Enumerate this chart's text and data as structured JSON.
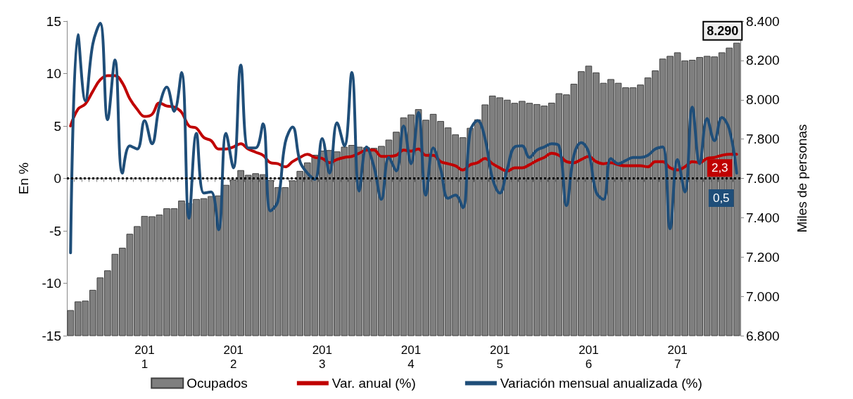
{
  "chart_data": {
    "type": "bar",
    "categories": [
      null,
      null,
      null,
      null,
      null,
      null,
      null,
      null,
      null,
      null,
      "2011",
      null,
      null,
      null,
      null,
      null,
      null,
      null,
      null,
      null,
      null,
      null,
      "2012",
      null,
      null,
      null,
      null,
      null,
      null,
      null,
      null,
      null,
      null,
      null,
      "2013",
      null,
      null,
      null,
      null,
      null,
      null,
      null,
      null,
      null,
      null,
      null,
      "2014",
      null,
      null,
      null,
      null,
      null,
      null,
      null,
      null,
      null,
      null,
      null,
      "2015",
      null,
      null,
      null,
      null,
      null,
      null,
      null,
      null,
      null,
      null,
      null,
      "2016",
      null,
      null,
      null,
      null,
      null,
      null,
      null,
      null,
      null,
      null,
      null,
      "2017",
      null,
      null,
      null,
      null,
      null,
      null,
      null,
      null
    ],
    "ylabel": "En %",
    "y2label": "Miles de personas",
    "ylim": [
      -15,
      15
    ],
    "yticks": [
      -15,
      -10,
      -5,
      0,
      5,
      10,
      15
    ],
    "y2lim": [
      6800,
      8400
    ],
    "y2ticks": [
      {
        "value": 6800,
        "label": "6.800"
      },
      {
        "value": 7000,
        "label": "7.000"
      },
      {
        "value": 7200,
        "label": "7.200"
      },
      {
        "value": 7400,
        "label": "7.400"
      },
      {
        "value": 7600,
        "label": "7.600"
      },
      {
        "value": 7800,
        "label": "7.800"
      },
      {
        "value": 8000,
        "label": "8.000"
      },
      {
        "value": 8200,
        "label": "8.200"
      },
      {
        "value": 8400,
        "label": "8.400"
      }
    ],
    "legend": "bottom",
    "grid": false,
    "marker": "none",
    "ref_lines": [
      {
        "axis": "y",
        "value": 0,
        "color": "#000000",
        "line_style": "dotted"
      }
    ],
    "series": [
      {
        "name": "Ocupados",
        "axis": "y2",
        "color": "#7f7f7f",
        "values": [
          6930,
          6974,
          6978,
          7033,
          7096,
          7132,
          7216,
          7247,
          7318,
          7357,
          7409,
          7407,
          7416,
          7448,
          7448,
          7487,
          7475,
          7495,
          7499,
          7510,
          7513,
          7567,
          7594,
          7642,
          7618,
          7626,
          7621,
          7591,
          7555,
          7555,
          7590,
          7638,
          7681,
          7720,
          7741,
          7744,
          7737,
          7761,
          7770,
          7761,
          7758,
          7755,
          7765,
          7797,
          7837,
          7910,
          7925,
          7952,
          7898,
          7928,
          7892,
          7859,
          7824,
          7809,
          7857,
          7900,
          7976,
          8021,
          8012,
          8000,
          7984,
          7994,
          7984,
          7978,
          7970,
          7985,
          8033,
          8027,
          8081,
          8145,
          8173,
          8139,
          8086,
          8105,
          8086,
          8063,
          8063,
          8077,
          8113,
          8149,
          8209,
          8223,
          8241,
          8200,
          8203,
          8217,
          8223,
          8220,
          8241,
          8265,
          8290
        ],
        "value_labels": [
          null,
          null,
          null,
          null,
          null,
          null,
          null,
          null,
          null,
          null,
          null,
          null,
          null,
          null,
          null,
          null,
          null,
          null,
          null,
          null,
          null,
          null,
          null,
          null,
          null,
          null,
          null,
          null,
          null,
          null,
          null,
          null,
          null,
          null,
          null,
          null,
          null,
          null,
          null,
          null,
          null,
          null,
          null,
          null,
          null,
          null,
          null,
          null,
          null,
          null,
          null,
          null,
          null,
          null,
          null,
          null,
          null,
          null,
          null,
          null,
          null,
          null,
          null,
          null,
          null,
          null,
          null,
          null,
          null,
          null,
          null,
          null,
          null,
          null,
          null,
          null,
          null,
          null,
          null,
          null,
          null,
          null,
          null,
          null,
          null,
          null,
          null,
          null,
          null,
          null,
          "8.290"
        ]
      },
      {
        "name": "Var. anual (%)",
        "type": "line",
        "color": "#c00000",
        "values": [
          5.0,
          6.6,
          7.1,
          8.3,
          9.4,
          9.8,
          9.8,
          9.1,
          7.6,
          6.6,
          5.9,
          6.1,
          7.2,
          6.9,
          6.8,
          6.3,
          5.0,
          4.8,
          3.9,
          3.6,
          2.8,
          2.8,
          3.0,
          3.3,
          2.8,
          2.5,
          2.2,
          1.5,
          1.4,
          1.1,
          1.6,
          2.0,
          2.3,
          2.0,
          1.9,
          1.5,
          1.8,
          2.0,
          2.1,
          2.4,
          2.7,
          2.7,
          2.1,
          2.1,
          2.2,
          2.7,
          2.6,
          2.8,
          2.2,
          2.2,
          1.6,
          1.4,
          1.2,
          0.8,
          1.3,
          1.5,
          1.9,
          1.4,
          1.0,
          0.7,
          1.0,
          1.0,
          1.3,
          1.7,
          2.0,
          2.4,
          2.2,
          1.6,
          1.5,
          1.8,
          2.1,
          1.6,
          1.4,
          1.5,
          1.3,
          1.2,
          1.2,
          1.2,
          1.1,
          1.6,
          1.6,
          1.0,
          0.8,
          1.1,
          1.6,
          1.5,
          1.9,
          2.0,
          2.2,
          2.3,
          2.3
        ],
        "value_labels": [
          null,
          null,
          null,
          null,
          null,
          null,
          null,
          null,
          null,
          null,
          null,
          null,
          null,
          null,
          null,
          null,
          null,
          null,
          null,
          null,
          null,
          null,
          null,
          null,
          null,
          null,
          null,
          null,
          null,
          null,
          null,
          null,
          null,
          null,
          null,
          null,
          null,
          null,
          null,
          null,
          null,
          null,
          null,
          null,
          null,
          null,
          null,
          null,
          null,
          null,
          null,
          null,
          null,
          null,
          null,
          null,
          null,
          null,
          null,
          null,
          null,
          null,
          null,
          null,
          null,
          null,
          null,
          null,
          null,
          null,
          null,
          null,
          null,
          null,
          null,
          null,
          null,
          null,
          null,
          null,
          null,
          null,
          null,
          null,
          null,
          null,
          null,
          null,
          null,
          null,
          "2,3"
        ]
      },
      {
        "name": "Variación mensual anualizada (%)",
        "type": "line",
        "color": "#1f4e79",
        "values": [
          -7.1,
          13.7,
          7.4,
          12.8,
          14.8,
          5.6,
          11.3,
          0.5,
          3.1,
          2.8,
          5.5,
          3.3,
          6.9,
          8.7,
          6.4,
          10.1,
          -3.8,
          4.3,
          -1.4,
          -1.3,
          -4.9,
          4.3,
          1.0,
          10.8,
          2.9,
          2.9,
          5.2,
          -3.1,
          -2.2,
          3.4,
          4.9,
          1.6,
          0.5,
          -0.1,
          3.8,
          0.5,
          5.3,
          3.1,
          10.1,
          -1.2,
          3.0,
          1.1,
          -2.0,
          2.0,
          0.7,
          5.0,
          1.4,
          6.3,
          -1.6,
          2.9,
          0.9,
          -1.9,
          -1.6,
          -2.8,
          4.5,
          5.5,
          3.8,
          0.0,
          -1.4,
          0.9,
          3.0,
          3.1,
          2.0,
          2.7,
          3.0,
          3.3,
          3.1,
          -2.6,
          2.2,
          3.4,
          2.5,
          -1.3,
          -2.0,
          1.9,
          1.4,
          1.7,
          2.0,
          2.0,
          2.2,
          2.8,
          3.0,
          -4.8,
          1.8,
          -1.3,
          6.8,
          1.4,
          5.7,
          3.6,
          5.8,
          4.7,
          0.5
        ],
        "value_labels": [
          null,
          null,
          null,
          null,
          null,
          null,
          null,
          null,
          null,
          null,
          null,
          null,
          null,
          null,
          null,
          null,
          null,
          null,
          null,
          null,
          null,
          null,
          null,
          null,
          null,
          null,
          null,
          null,
          null,
          null,
          null,
          null,
          null,
          null,
          null,
          null,
          null,
          null,
          null,
          null,
          null,
          null,
          null,
          null,
          null,
          null,
          null,
          null,
          null,
          null,
          null,
          null,
          null,
          null,
          null,
          null,
          null,
          null,
          null,
          null,
          null,
          null,
          null,
          null,
          null,
          null,
          null,
          null,
          null,
          null,
          null,
          null,
          null,
          null,
          null,
          null,
          null,
          null,
          null,
          null,
          null,
          null,
          null,
          null,
          null,
          null,
          null,
          null,
          null,
          null,
          "0,5"
        ]
      }
    ]
  }
}
